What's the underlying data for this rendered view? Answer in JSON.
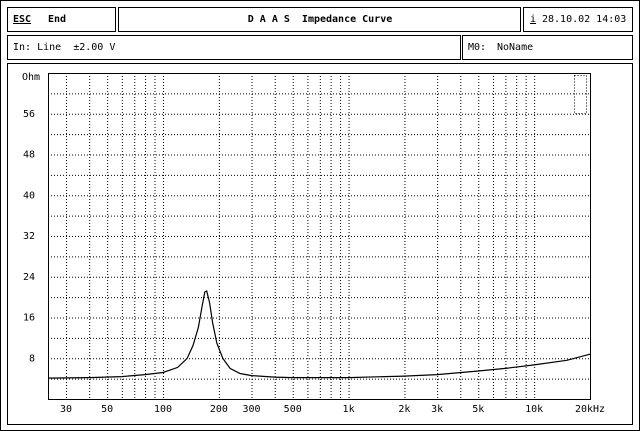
{
  "header": {
    "esc": "ESC",
    "esc_action": "End",
    "title": "D A A S  Impedance Curve",
    "info_key": "i",
    "datetime": "28.10.02 14:03"
  },
  "status": {
    "input": "In: Line  ±2.00 V",
    "memory_key": "M0:",
    "memory_name": "NoName"
  },
  "chart_data": {
    "type": "line",
    "log_x": true,
    "grid": true,
    "color": "#000000",
    "x": [
      24,
      40,
      60,
      80,
      100,
      120,
      135,
      145,
      155,
      162,
      168,
      172,
      178,
      185,
      195,
      210,
      230,
      260,
      300,
      400,
      500,
      700,
      1000,
      2000,
      3000,
      5000,
      7000,
      10000,
      15000,
      20000
    ],
    "values": [
      4.1,
      4.2,
      4.4,
      4.8,
      5.2,
      6.2,
      8,
      10.5,
      14,
      18,
      21,
      21.2,
      19,
      15,
      11,
      8,
      6,
      5,
      4.6,
      4.3,
      4.2,
      4.2,
      4.2,
      4.5,
      4.8,
      5.5,
      6,
      6.7,
      7.6,
      8.8
    ],
    "xlim": [
      24,
      20000
    ],
    "ylim": [
      0,
      64
    ],
    "xticks": [
      30,
      50,
      100,
      200,
      300,
      500,
      {
        "value": 1000,
        "label": "1k"
      },
      {
        "value": 2000,
        "label": "2k"
      },
      {
        "value": 3000,
        "label": "3k"
      },
      {
        "value": 5000,
        "label": "5k"
      },
      {
        "value": 10000,
        "label": "10k"
      },
      {
        "value": 20000,
        "label": "20kHz"
      }
    ],
    "x_minor_grid": [
      40,
      60,
      70,
      80,
      90,
      400,
      600,
      700,
      800,
      900,
      4000,
      6000,
      7000,
      8000,
      9000
    ],
    "yticks": [
      8,
      16,
      24,
      32,
      40,
      48,
      56,
      {
        "value": 64,
        "label": "Ohm"
      }
    ],
    "y_minor_grid": [
      4,
      12,
      20,
      28,
      36,
      44,
      52,
      60
    ]
  }
}
